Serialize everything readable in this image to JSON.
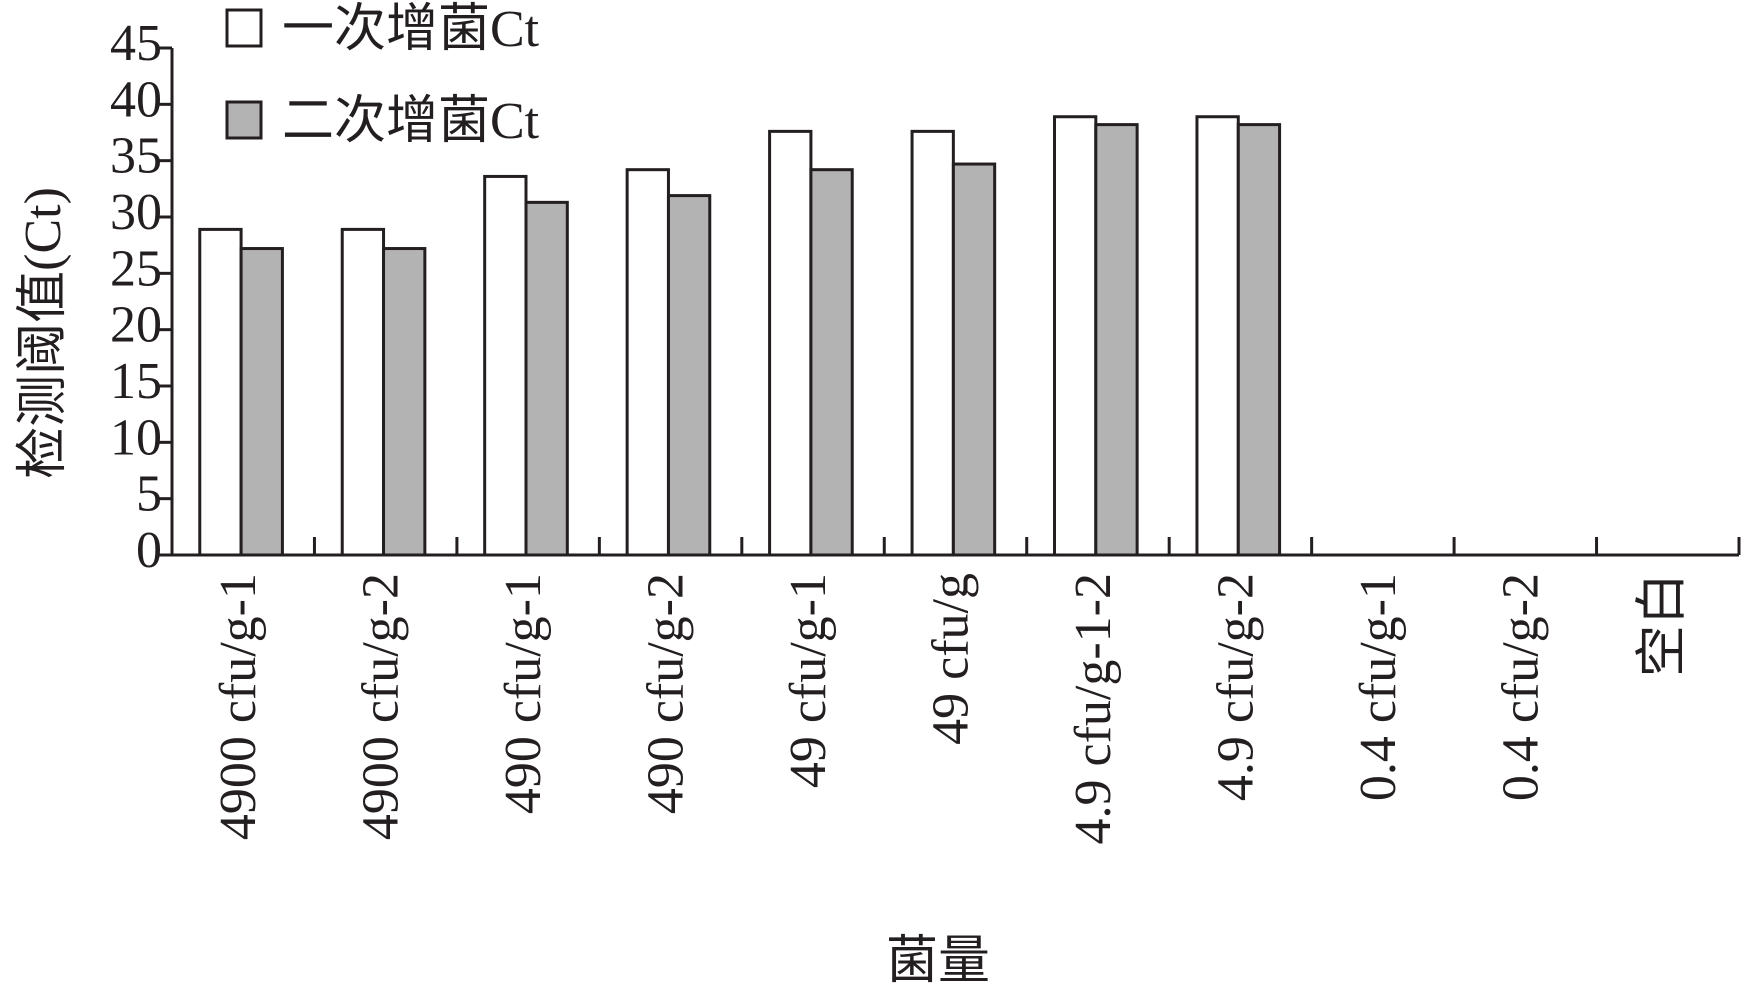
{
  "chart_data": {
    "type": "bar",
    "x_label": "菌量",
    "y_label": "检测阈值(Ct)",
    "categories": [
      "4900 cfu/g-1",
      "4900 cfu/g-2",
      "490 cfu/g-1",
      "490 cfu/g-2",
      "49 cfu/g-1",
      "49 cfu/g",
      "4.9 cfu/g-1-2",
      "4.9 cfu/g-2",
      "0.4 cfu/g-1",
      "0.4 cfu/g-2",
      "空白"
    ],
    "series": [
      {
        "name": "一次增菌Ct",
        "color": "#ffffff",
        "values": [
          28.9,
          28.9,
          33.6,
          34.2,
          37.6,
          37.6,
          38.9,
          38.9,
          null,
          null,
          null
        ]
      },
      {
        "name": "二次增菌Ct",
        "color": "#b3b3b3",
        "values": [
          27.2,
          27.2,
          31.3,
          31.9,
          34.2,
          34.7,
          38.2,
          38.2,
          null,
          null,
          null
        ]
      }
    ],
    "ylim": [
      0,
      45
    ],
    "yticks": [
      0,
      5,
      10,
      15,
      20,
      25,
      30,
      35,
      40,
      45
    ],
    "legend": "top-left"
  }
}
